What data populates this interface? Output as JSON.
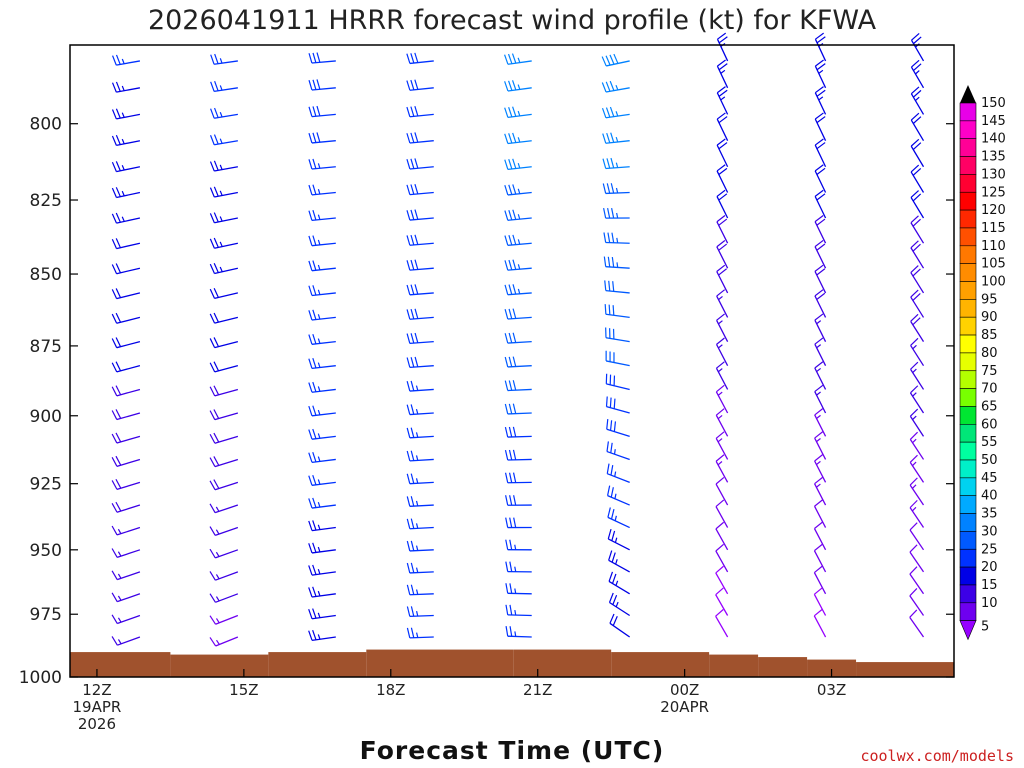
{
  "chart_data": {
    "type": "wind_barb_profile",
    "title": "2026041911 HRRR forecast wind profile (kt) for KFWA",
    "xlabel": "Forecast Time (UTC)",
    "credit": "coolwx.com/models",
    "ylim": [
      1000,
      775
    ],
    "yticks": [
      800,
      825,
      850,
      875,
      900,
      925,
      950,
      975,
      1000
    ],
    "xlim": [
      -0.55,
      17.5
    ],
    "xticks": [
      {
        "x": 0,
        "lines": [
          "12Z",
          "19APR",
          "2026"
        ]
      },
      {
        "x": 3,
        "lines": [
          "15Z"
        ]
      },
      {
        "x": 6,
        "lines": [
          "18Z"
        ]
      },
      {
        "x": 9,
        "lines": [
          "21Z"
        ]
      },
      {
        "x": 12,
        "lines": [
          "00Z",
          "20APR"
        ]
      },
      {
        "x": 15,
        "lines": [
          "03Z"
        ]
      }
    ],
    "columns": [
      {
        "hour": 1,
        "dir_base": 250,
        "dir_top": 260,
        "spd_base": 15,
        "spd_top": 25
      },
      {
        "hour": 3,
        "dir_base": 248,
        "dir_top": 262,
        "spd_base": 14,
        "spd_top": 27
      },
      {
        "hour": 5,
        "dir_base": 262,
        "dir_top": 265,
        "spd_base": 24,
        "spd_top": 28
      },
      {
        "hour": 7,
        "dir_base": 268,
        "dir_top": 264,
        "spd_base": 26,
        "spd_top": 29
      },
      {
        "hour": 9,
        "dir_base": 272,
        "dir_top": 262,
        "spd_base": 25,
        "spd_top": 37
      },
      {
        "hour": 11,
        "dir_base": 305,
        "dir_top": 258,
        "spd_base": 22,
        "spd_top": 38
      },
      {
        "hour": 13,
        "dir_base": 330,
        "dir_top": 335,
        "spd_base": 8,
        "spd_top": 24
      },
      {
        "hour": 15,
        "dir_base": 332,
        "dir_top": 335,
        "spd_base": 9,
        "spd_top": 24
      },
      {
        "hour": 17,
        "dir_base": 325,
        "dir_top": 330,
        "spd_base": 10,
        "spd_top": 24
      }
    ],
    "surface_pressure": [
      {
        "x0": -0.55,
        "x1": 1.5,
        "p": 990
      },
      {
        "x0": 1.5,
        "x1": 3.5,
        "p": 991
      },
      {
        "x0": 3.5,
        "x1": 5.5,
        "p": 990
      },
      {
        "x0": 5.5,
        "x1": 8.5,
        "p": 989
      },
      {
        "x0": 8.5,
        "x1": 10.5,
        "p": 989
      },
      {
        "x0": 10.5,
        "x1": 12.5,
        "p": 990
      },
      {
        "x0": 12.5,
        "x1": 13.5,
        "p": 991
      },
      {
        "x0": 13.5,
        "x1": 14.5,
        "p": 992
      },
      {
        "x0": 14.5,
        "x1": 15.5,
        "p": 993
      },
      {
        "x0": 15.5,
        "x1": 17.5,
        "p": 994
      }
    ],
    "colorbar": {
      "labels": [
        "150",
        "145",
        "140",
        "135",
        "130",
        "125",
        "120",
        "115",
        "110",
        "105",
        "100",
        "95",
        "90",
        "85",
        "80",
        "75",
        "70",
        "65",
        "60",
        "55",
        "50",
        "45",
        "40",
        "35",
        "30",
        "25",
        "20",
        "15",
        "10",
        "5"
      ],
      "colors": [
        "#e800e8",
        "#ff00c8",
        "#ff0096",
        "#ff0064",
        "#ff0032",
        "#ff0000",
        "#ff2800",
        "#ff5000",
        "#ff7800",
        "#ff8c00",
        "#ffa000",
        "#ffb400",
        "#ffd200",
        "#ffff00",
        "#e6ff00",
        "#b4ff00",
        "#78ff00",
        "#00e632",
        "#00e678",
        "#00ffa0",
        "#00f0c8",
        "#00d2f0",
        "#00aaff",
        "#0082ff",
        "#005aff",
        "#0032ff",
        "#0000e6",
        "#3c00e6",
        "#6e00f0",
        "#9600ff"
      ],
      "top_cap": "#000000"
    },
    "surface_color": "#a0522d"
  }
}
